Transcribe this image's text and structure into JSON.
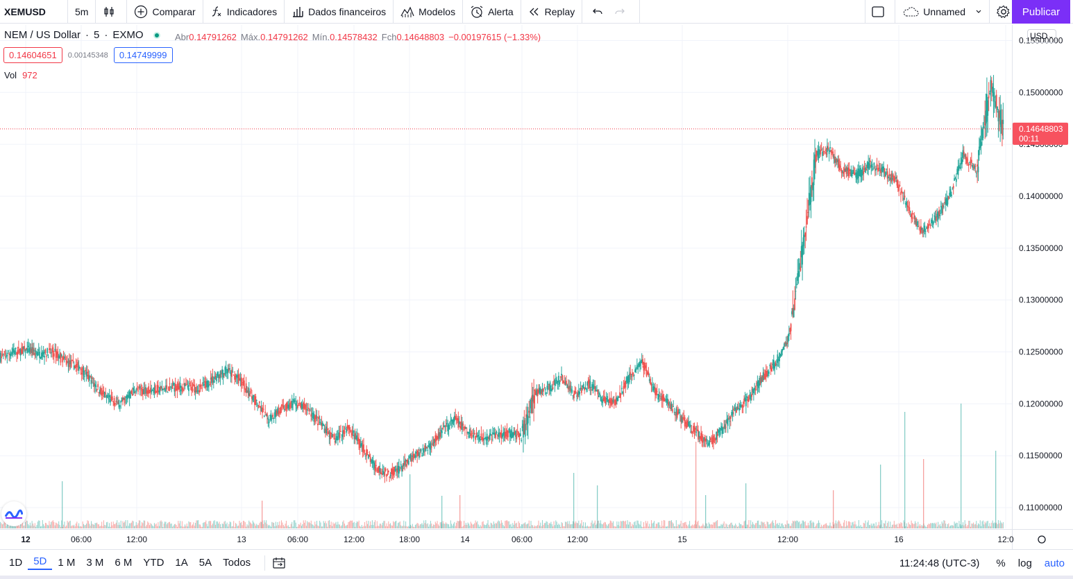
{
  "toolbar": {
    "symbol": "XEMUSD",
    "interval": "5m",
    "compare": "Comparar",
    "indicators": "Indicadores",
    "financials": "Dados financeiros",
    "templates": "Modelos",
    "alert": "Alerta",
    "replay": "Replay",
    "layout_name": "Unnamed",
    "publish": "Publicar"
  },
  "legend": {
    "name": "NEM / US Dollar",
    "interval": "5",
    "exchange": "EXMO",
    "open_label": "Abr",
    "open": "0.14791262",
    "high_label": "Máx.",
    "high": "0.14791262",
    "low_label": "Mín.",
    "low": "0.14578432",
    "close_label": "Fch",
    "close": "0.14648803",
    "change": "−0.00197615 (−1.33%)",
    "bid": "0.14604651",
    "spread": "0.00145348",
    "ask": "0.14749999",
    "vol_label": "Vol",
    "vol_value": "972",
    "currency": "USD"
  },
  "price_axis": {
    "last_price": "0.14648803",
    "countdown": "00:11"
  },
  "bottom": {
    "ranges": [
      "1D",
      "5D",
      "1 M",
      "3 M",
      "6 M",
      "YTD",
      "1A",
      "5A",
      "Todos"
    ],
    "active_range": "5D",
    "clock": "11:24:48 (UTC-3)",
    "percent": "%",
    "log": "log",
    "auto": "auto"
  },
  "colors": {
    "up": "#26a69a",
    "down": "#ef5350",
    "accent": "#2962ff",
    "publish": "#7b2ff7"
  },
  "chart_data": {
    "type": "candlestick",
    "title": "NEM / US Dollar · 5 · EXMO",
    "ylim": [
      0.108,
      0.1565
    ],
    "y_ticks": [
      "0.15500000",
      "0.15000000",
      "0.14500000",
      "0.14000000",
      "0.13500000",
      "0.13000000",
      "0.12500000",
      "0.12000000",
      "0.11500000",
      "0.11000000"
    ],
    "x_ticks": [
      "12",
      "06:00",
      "12:00",
      "13",
      "06:00",
      "12:00",
      "18:00",
      "14",
      "06:00",
      "12:00",
      "15",
      "12:00",
      "16",
      "12:0"
    ],
    "price_path": [
      [
        0.1245,
        0.125
      ],
      [
        0.125,
        0.1252
      ],
      [
        0.1252,
        0.1248
      ],
      [
        0.1248,
        0.125
      ],
      [
        0.125,
        0.124
      ],
      [
        0.124,
        0.1235
      ],
      [
        0.1235,
        0.122
      ],
      [
        0.122,
        0.1205
      ],
      [
        0.1205,
        0.12
      ],
      [
        0.12,
        0.1212
      ],
      [
        0.1212,
        0.1214
      ],
      [
        0.1214,
        0.1214
      ],
      [
        0.1214,
        0.1216
      ],
      [
        0.1216,
        0.1216
      ],
      [
        0.1216,
        0.1215
      ],
      [
        0.1215,
        0.1225
      ],
      [
        0.1225,
        0.1232
      ],
      [
        0.1232,
        0.1222
      ],
      [
        0.1222,
        0.1205
      ],
      [
        0.1205,
        0.1185
      ],
      [
        0.1185,
        0.1195
      ],
      [
        0.1195,
        0.12
      ],
      [
        0.12,
        0.1195
      ],
      [
        0.1195,
        0.118
      ],
      [
        0.118,
        0.1165
      ],
      [
        0.1165,
        0.1178
      ],
      [
        0.1178,
        0.116
      ],
      [
        0.116,
        0.114
      ],
      [
        0.114,
        0.1133
      ],
      [
        0.1133,
        0.1138
      ],
      [
        0.1138,
        0.115
      ],
      [
        0.115,
        0.1158
      ],
      [
        0.1158,
        0.1172
      ],
      [
        0.1172,
        0.1185
      ],
      [
        0.1185,
        0.1172
      ],
      [
        0.1172,
        0.1168
      ],
      [
        0.1168,
        0.117
      ],
      [
        0.117,
        0.1172
      ],
      [
        0.1172,
        0.1168
      ],
      [
        0.1168,
        0.121
      ],
      [
        0.121,
        0.1215
      ],
      [
        0.1215,
        0.1225
      ],
      [
        0.1225,
        0.1208
      ],
      [
        0.1208,
        0.122
      ],
      [
        0.122,
        0.1205
      ],
      [
        0.1205,
        0.1202
      ],
      [
        0.1202,
        0.1225
      ],
      [
        0.1225,
        0.124
      ],
      [
        0.124,
        0.121
      ],
      [
        0.121,
        0.12
      ],
      [
        0.12,
        0.1185
      ],
      [
        0.1185,
        0.1172
      ],
      [
        0.1172,
        0.1162
      ],
      [
        0.1162,
        0.1175
      ],
      [
        0.1175,
        0.1195
      ],
      [
        0.1195,
        0.1205
      ],
      [
        0.1205,
        0.1225
      ],
      [
        0.1225,
        0.124
      ],
      [
        0.124,
        0.1265
      ],
      [
        0.1265,
        0.135
      ],
      [
        0.135,
        0.144
      ],
      [
        0.144,
        0.1445
      ],
      [
        0.1445,
        0.1425
      ],
      [
        0.1425,
        0.142
      ],
      [
        0.142,
        0.143
      ],
      [
        0.143,
        0.1425
      ],
      [
        0.1425,
        0.1415
      ],
      [
        0.1415,
        0.1385
      ],
      [
        0.1385,
        0.1365
      ],
      [
        0.1365,
        0.138
      ],
      [
        0.138,
        0.14
      ],
      [
        0.14,
        0.144
      ],
      [
        0.144,
        0.1425
      ],
      [
        0.1425,
        0.1505
      ],
      [
        0.1505,
        0.1465
      ]
    ],
    "volume_spikes": [
      [
        89,
        68
      ],
      [
        377,
        40
      ],
      [
        590,
        78
      ],
      [
        636,
        47
      ],
      [
        662,
        48
      ],
      [
        826,
        80
      ],
      [
        860,
        62
      ],
      [
        1002,
        125
      ],
      [
        1016,
        48
      ],
      [
        1074,
        65
      ],
      [
        1200,
        55
      ],
      [
        1268,
        92
      ],
      [
        1303,
        168
      ],
      [
        1330,
        100
      ],
      [
        1384,
        180
      ],
      [
        1434,
        112
      ]
    ]
  }
}
